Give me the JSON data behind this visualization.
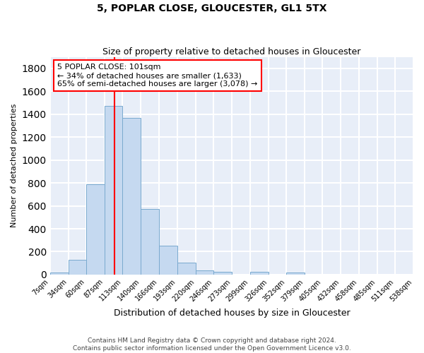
{
  "title": "5, POPLAR CLOSE, GLOUCESTER, GL1 5TX",
  "subtitle": "Size of property relative to detached houses in Gloucester",
  "xlabel": "Distribution of detached houses by size in Gloucester",
  "ylabel": "Number of detached properties",
  "bar_color": "#c5d9f0",
  "bar_edge_color": "#7aaacf",
  "background_color": "#e8eef8",
  "grid_color": "#ffffff",
  "vline_x": 101,
  "vline_color": "red",
  "annotation_text": "5 POPLAR CLOSE: 101sqm\n← 34% of detached houses are smaller (1,633)\n65% of semi-detached houses are larger (3,078) →",
  "footer_line1": "Contains HM Land Registry data © Crown copyright and database right 2024.",
  "footer_line2": "Contains public sector information licensed under the Open Government Licence v3.0.",
  "bin_edges": [
    7,
    34,
    60,
    87,
    113,
    140,
    166,
    193,
    220,
    246,
    273,
    299,
    326,
    352,
    379,
    405,
    432,
    458,
    485,
    511,
    538
  ],
  "bin_counts": [
    15,
    130,
    790,
    1470,
    1370,
    575,
    250,
    105,
    35,
    25,
    0,
    25,
    0,
    15,
    0,
    0,
    0,
    0,
    0,
    0
  ],
  "ylim": [
    0,
    1900
  ],
  "yticks": [
    0,
    200,
    400,
    600,
    800,
    1000,
    1200,
    1400,
    1600,
    1800
  ]
}
